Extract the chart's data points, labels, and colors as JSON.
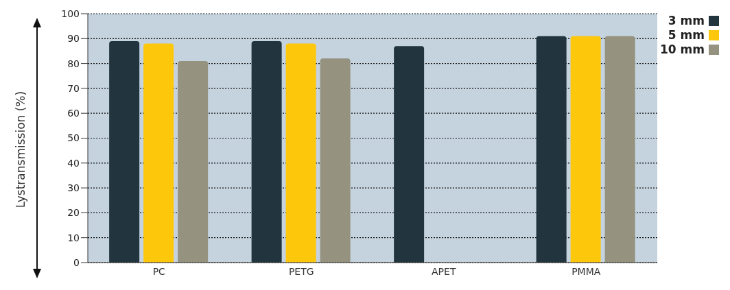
{
  "chart_data": {
    "type": "bar",
    "ylabel": "Lystransmission (%)",
    "categories": [
      "PC",
      "PETG",
      "APET",
      "PMMA"
    ],
    "series": [
      {
        "name": "3 mm",
        "color": "#22353f",
        "values": [
          89,
          89,
          87,
          91
        ]
      },
      {
        "name": "5 mm",
        "color": "#fdc70c",
        "values": [
          88,
          88,
          null,
          91
        ]
      },
      {
        "name": "10 mm",
        "color": "#959380",
        "values": [
          81,
          82,
          null,
          91
        ]
      }
    ],
    "ylim": [
      0,
      100
    ],
    "yticks": [
      0,
      10,
      20,
      30,
      40,
      50,
      60,
      70,
      80,
      90,
      100
    ],
    "grid": "y",
    "legend": "top right"
  }
}
